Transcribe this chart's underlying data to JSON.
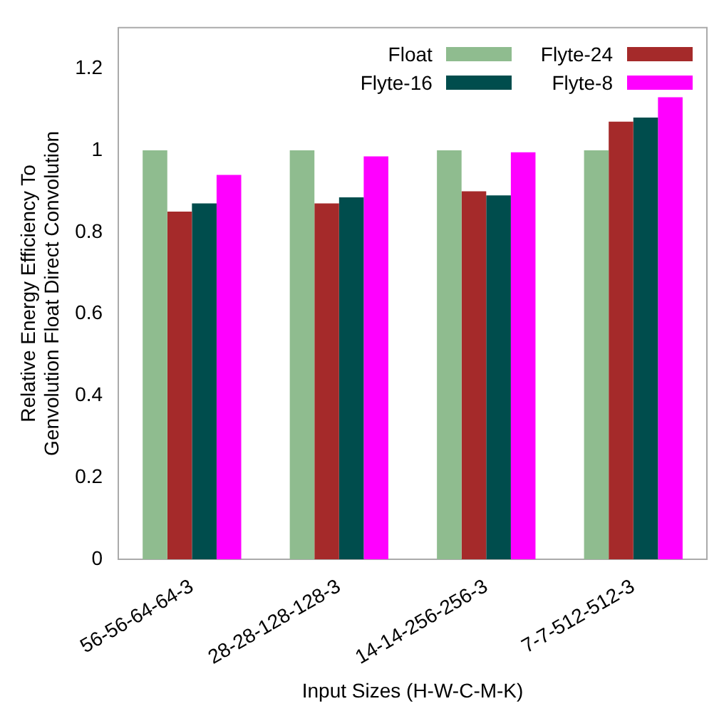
{
  "chart_data": {
    "type": "bar",
    "xlabel": "Input Sizes (H-W-C-M-K)",
    "ylabel": "Relative Energy Efficiency To\nGenvolution Float Direct Convolution",
    "categories": [
      "56-56-64-64-3",
      "28-28-128-128-3",
      "14-14-256-256-3",
      "7-7-512-512-3"
    ],
    "series": [
      {
        "name": "Float",
        "color": "#8fbc8f",
        "values": [
          1,
          1,
          1,
          1
        ]
      },
      {
        "name": "Flyte-24",
        "color": "#a52a2a",
        "values": [
          0.85,
          0.87,
          0.9,
          1.07
        ]
      },
      {
        "name": "Flyte-16",
        "color": "#004d4d",
        "values": [
          0.87,
          0.885,
          0.89,
          1.08
        ]
      },
      {
        "name": "Flyte-8",
        "color": "#ff00ff",
        "values": [
          0.94,
          0.985,
          0.995,
          1.13
        ]
      }
    ],
    "ylim": [
      0,
      1.3
    ],
    "yticks": [
      0,
      0.2,
      0.4,
      0.6,
      0.8,
      1,
      1.2
    ],
    "grid": false,
    "legend": "top right"
  }
}
